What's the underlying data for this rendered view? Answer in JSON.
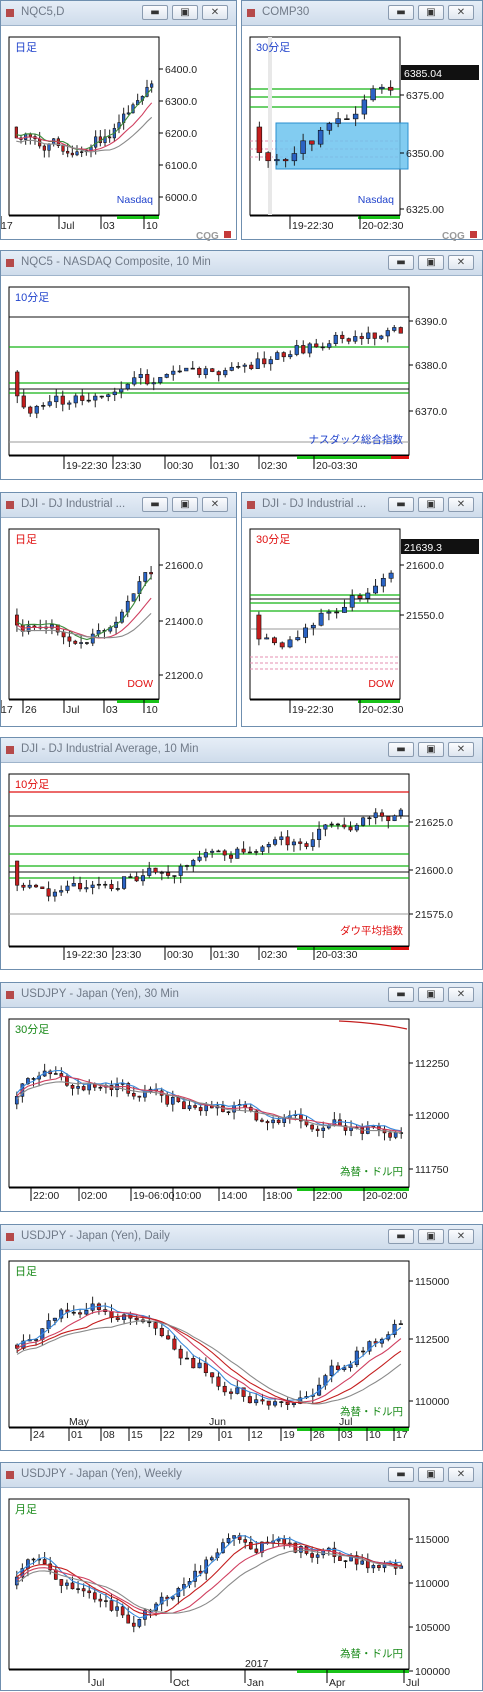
{
  "colors": {
    "up_candle": "#2a63c4",
    "down_candle": "#c41e1e",
    "doji": "#222222",
    "window_border": "#6f8faf",
    "period_label_nasdaq": "#2244cc",
    "period_label_dow": "#e01010",
    "period_label_fx": "#1a8a1a",
    "green_level": "#14b414",
    "highlight_box": "#6cc3ee"
  },
  "icons": {
    "minimize": "minimize-icon",
    "maximize": "maximize-icon",
    "close": "close-icon",
    "app": "cqg-app-icon"
  },
  "windows": [
    {
      "title": "NQC5,D",
      "period_label": "日足",
      "instrument_label": "Nasdaq",
      "logo": "CQG",
      "chart_data": {
        "type": "candlestick",
        "x_ticks": [
          "Jul",
          "03",
          "10",
          "17"
        ],
        "y_ticks": [
          "6400.0",
          "6300.0",
          "6200.0",
          "6100.0",
          "6000.0"
        ],
        "ylim": [
          6000,
          6450
        ]
      }
    },
    {
      "title": "COMP30",
      "period_label": "30分足",
      "instrument_label": "Nasdaq",
      "last_price": "6385.04",
      "logo": "CQG",
      "chart_data": {
        "type": "candlestick",
        "x_ticks": [
          "19-22:30",
          "20-02:30"
        ],
        "y_ticks": [
          "6375.00",
          "6350.00",
          "6325.00"
        ],
        "ylim": [
          6320,
          6410
        ]
      }
    },
    {
      "title": "NQC5 - NASDAQ Composite, 10 Min",
      "period_label": "10分足",
      "instrument_label": "ナスダック総合指数",
      "chart_data": {
        "type": "candlestick",
        "x_ticks": [
          "19-22:30",
          "23:30",
          "00:30",
          "01:30",
          "02:30",
          "20-03:30"
        ],
        "y_ticks": [
          "6390.0",
          "6380.0",
          "6370.0"
        ],
        "ylim": [
          6362,
          6395
        ]
      }
    },
    {
      "title": "DJI - DJ Industrial ...",
      "period_label": "日足",
      "instrument_label": "DOW",
      "chart_data": {
        "type": "candlestick",
        "x_ticks": [
          "26",
          "Jul",
          "03",
          "10",
          "17"
        ],
        "y_ticks": [
          "21600.0",
          "21400.0",
          "21200.0"
        ],
        "ylim": [
          21150,
          21700
        ]
      }
    },
    {
      "title": "DJI - DJ Industrial ...",
      "period_label": "30分足",
      "instrument_label": "DOW",
      "last_price": "21639.3",
      "chart_data": {
        "type": "candlestick",
        "x_ticks": [
          "19-22:30",
          "20-02:30"
        ],
        "y_ticks": [
          "21600.0",
          "21550.0"
        ],
        "ylim": [
          21520,
          21660
        ]
      }
    },
    {
      "title": "DJI - DJ Industrial Average, 10 Min",
      "period_label": "10分足",
      "instrument_label": "ダウ平均指数",
      "chart_data": {
        "type": "candlestick",
        "x_ticks": [
          "19-22:30",
          "23:30",
          "00:30",
          "01:30",
          "02:30",
          "20-03:30"
        ],
        "y_ticks": [
          "21625.0",
          "21600.0",
          "21575.0"
        ],
        "ylim": [
          21560,
          21648
        ]
      }
    },
    {
      "title": "USDJPY - Japan (Yen), 30 Min",
      "period_label": "30分足",
      "instrument_label": "為替・ドル円",
      "chart_data": {
        "type": "candlestick",
        "x_ticks": [
          "22:00",
          "02:00",
          "19-06:00",
          "10:00",
          "14:00",
          "18:00",
          "22:00",
          "20-02:00"
        ],
        "y_ticks": [
          "112250",
          "112000",
          "111750"
        ],
        "ylim": [
          111600,
          112550
        ]
      }
    },
    {
      "title": "USDJPY - Japan (Yen), Daily",
      "period_label": "日足",
      "instrument_label": "為替・ドル円",
      "chart_data": {
        "type": "candlestick",
        "x_ticks": [
          "24",
          "01",
          "08",
          "15",
          "22",
          "29",
          "01",
          "12",
          "19",
          "26",
          "03",
          "10",
          "17"
        ],
        "x_month_labels": [
          "May",
          "Jun",
          "Jul"
        ],
        "y_ticks": [
          "115000",
          "112500",
          "110000"
        ],
        "ylim": [
          108200,
          116200
        ]
      }
    },
    {
      "title": "USDJPY - Japan (Yen), Weekly",
      "period_label": "月足",
      "instrument_label": "為替・ドル円",
      "chart_data": {
        "type": "candlestick",
        "x_ticks": [
          "Jul",
          "Oct",
          "Jan",
          "Apr",
          "Jul"
        ],
        "x_year_label": "2017",
        "y_ticks": [
          "115000",
          "110000",
          "105000",
          "100000"
        ],
        "ylim": [
          98000,
          120000
        ]
      }
    }
  ]
}
